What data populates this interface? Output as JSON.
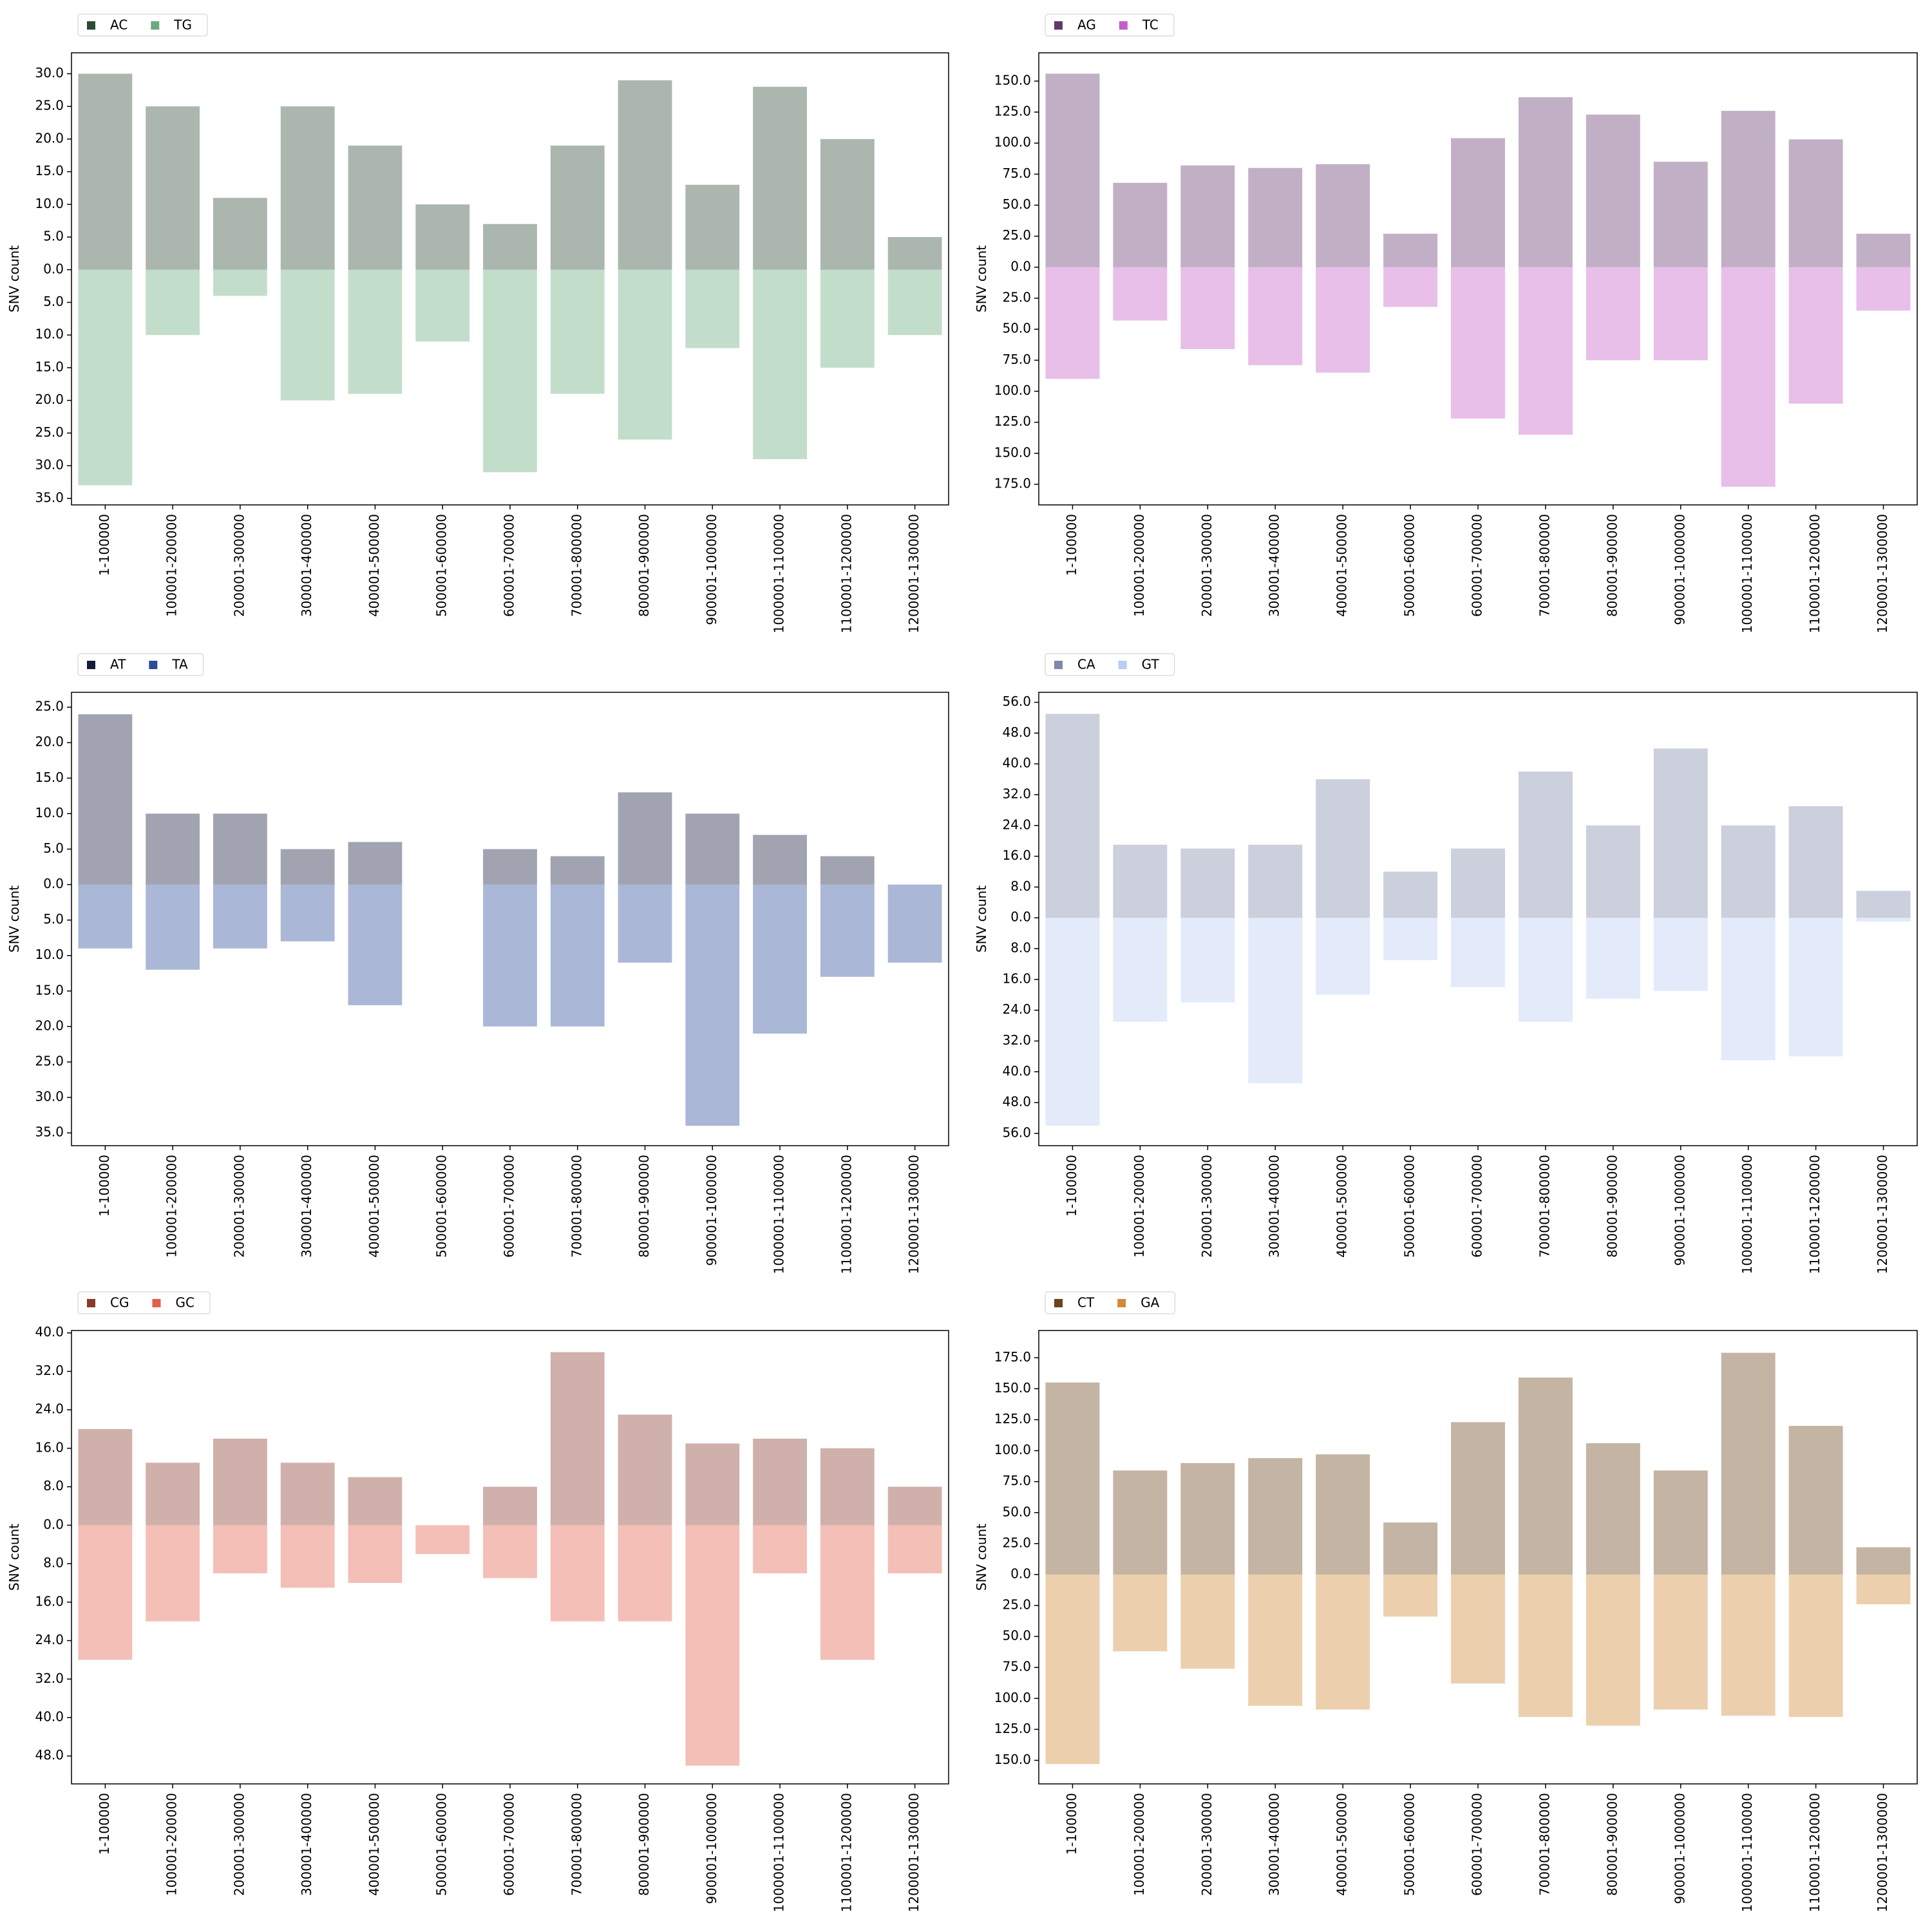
{
  "chart_data": [
    {
      "type": "bar",
      "ylabel": "SNV count",
      "bar_alpha": 0.4,
      "categories": [
        "1-100000",
        "100001-200000",
        "200001-300000",
        "300001-400000",
        "400001-500000",
        "500001-600000",
        "600001-700000",
        "700001-800000",
        "800001-900000",
        "900001-1000000",
        "1000001-1100000",
        "1100001-1200000",
        "1200001-1300000"
      ],
      "series": [
        {
          "name": "AC",
          "color": "#2c4a35",
          "values": [
            30,
            25,
            11,
            25,
            19,
            10,
            7,
            19,
            29,
            13,
            28,
            20,
            5
          ]
        },
        {
          "name": "TG",
          "color": "#6aaa7e",
          "values": [
            -33,
            -10,
            -4,
            -20,
            -19,
            -11,
            -31,
            -19,
            -26,
            -12,
            -29,
            -15,
            -10
          ]
        }
      ],
      "ylim": [
        -36,
        33.2
      ],
      "yticks": [
        {
          "value": 30,
          "label": "30.0"
        },
        {
          "value": 25,
          "label": "25.0"
        },
        {
          "value": 20,
          "label": "20.0"
        },
        {
          "value": 15,
          "label": "15.0"
        },
        {
          "value": 10,
          "label": "10.0"
        },
        {
          "value": 5,
          "label": "5.0"
        },
        {
          "value": 0,
          "label": "0.0"
        },
        {
          "value": -5,
          "label": "5.0"
        },
        {
          "value": -10,
          "label": "10.0"
        },
        {
          "value": -15,
          "label": "15.0"
        },
        {
          "value": -20,
          "label": "20.0"
        },
        {
          "value": -25,
          "label": "25.0"
        },
        {
          "value": -30,
          "label": "30.0"
        },
        {
          "value": -35,
          "label": "35.0"
        }
      ]
    },
    {
      "type": "bar",
      "ylabel": "SNV count",
      "bar_alpha": 0.4,
      "categories": [
        "1-100000",
        "100001-200000",
        "200001-300000",
        "300001-400000",
        "400001-500000",
        "500001-600000",
        "600001-700000",
        "700001-800000",
        "800001-900000",
        "900001-1000000",
        "1000001-1100000",
        "1100001-1200000",
        "1200001-1300000"
      ],
      "series": [
        {
          "name": "AG",
          "color": "#633a6d",
          "values": [
            156,
            68,
            82,
            80,
            83,
            27,
            104,
            137,
            123,
            85,
            126,
            103,
            27
          ]
        },
        {
          "name": "TC",
          "color": "#c45ec8",
          "values": [
            -90,
            -43,
            -66,
            -79,
            -85,
            -32,
            -122,
            -135,
            -75,
            -75,
            -177,
            -110,
            -35
          ]
        }
      ],
      "ylim": [
        -191.6,
        172.8
      ],
      "yticks": [
        {
          "value": 150,
          "label": "150.0"
        },
        {
          "value": 125,
          "label": "125.0"
        },
        {
          "value": 100,
          "label": "100.0"
        },
        {
          "value": 75,
          "label": "75.0"
        },
        {
          "value": 50,
          "label": "50.0"
        },
        {
          "value": 25,
          "label": "25.0"
        },
        {
          "value": 0,
          "label": "0.0"
        },
        {
          "value": -25,
          "label": "25.0"
        },
        {
          "value": -50,
          "label": "50.0"
        },
        {
          "value": -75,
          "label": "75.0"
        },
        {
          "value": -100,
          "label": "100.0"
        },
        {
          "value": -125,
          "label": "125.0"
        },
        {
          "value": -150,
          "label": "150.0"
        },
        {
          "value": -175,
          "label": "175.0"
        }
      ]
    },
    {
      "type": "bar",
      "ylabel": "SNV count",
      "bar_alpha": 0.4,
      "categories": [
        "1-100000",
        "100001-200000",
        "200001-300000",
        "300001-400000",
        "400001-500000",
        "500001-600000",
        "600001-700000",
        "700001-800000",
        "800001-900000",
        "900001-1000000",
        "1000001-1100000",
        "1100001-1200000",
        "1200001-1300000"
      ],
      "series": [
        {
          "name": "AT",
          "color": "#151c3a",
          "values": [
            24,
            10,
            10,
            5,
            6,
            0,
            5,
            4,
            13,
            10,
            7,
            4,
            0
          ]
        },
        {
          "name": "TA",
          "color": "#2e4a9a",
          "values": [
            -9,
            -12,
            -9,
            -8,
            -17,
            0,
            -20,
            -20,
            -11,
            -34,
            -21,
            -13,
            -11
          ]
        }
      ],
      "ylim": [
        -36.8,
        27.1
      ],
      "yticks": [
        {
          "value": 25,
          "label": "25.0"
        },
        {
          "value": 20,
          "label": "20.0"
        },
        {
          "value": 15,
          "label": "15.0"
        },
        {
          "value": 10,
          "label": "10.0"
        },
        {
          "value": 5,
          "label": "5.0"
        },
        {
          "value": 0,
          "label": "0.0"
        },
        {
          "value": -5,
          "label": "5.0"
        },
        {
          "value": -10,
          "label": "10.0"
        },
        {
          "value": -15,
          "label": "15.0"
        },
        {
          "value": -20,
          "label": "20.0"
        },
        {
          "value": -25,
          "label": "25.0"
        },
        {
          "value": -30,
          "label": "30.0"
        },
        {
          "value": -35,
          "label": "35.0"
        }
      ]
    },
    {
      "type": "bar",
      "ylabel": "SNV count",
      "bar_alpha": 0.4,
      "categories": [
        "1-100000",
        "100001-200000",
        "200001-300000",
        "300001-400000",
        "400001-500000",
        "500001-600000",
        "600001-700000",
        "700001-800000",
        "800001-900000",
        "900001-1000000",
        "1000001-1100000",
        "1100001-1200000",
        "1200001-1300000"
      ],
      "series": [
        {
          "name": "CA",
          "color": "#7f88a8",
          "values": [
            53,
            19,
            18,
            19,
            36,
            12,
            18,
            38,
            24,
            44,
            24,
            29,
            7
          ]
        },
        {
          "name": "GT",
          "color": "#b8cdf2",
          "values": [
            -54,
            -27,
            -22,
            -43,
            -20,
            -11,
            -18,
            -27,
            -21,
            -19,
            -37,
            -36,
            -1
          ]
        }
      ],
      "ylim": [
        -59.2,
        58.6
      ],
      "yticks": [
        {
          "value": 56,
          "label": "56.0"
        },
        {
          "value": 48,
          "label": "48.0"
        },
        {
          "value": 40,
          "label": "40.0"
        },
        {
          "value": 32,
          "label": "32.0"
        },
        {
          "value": 24,
          "label": "24.0"
        },
        {
          "value": 16,
          "label": "16.0"
        },
        {
          "value": 8,
          "label": "8.0"
        },
        {
          "value": 0,
          "label": "0.0"
        },
        {
          "value": -8,
          "label": "8.0"
        },
        {
          "value": -16,
          "label": "16.0"
        },
        {
          "value": -24,
          "label": "24.0"
        },
        {
          "value": -32,
          "label": "32.0"
        },
        {
          "value": -40,
          "label": "40.0"
        },
        {
          "value": -48,
          "label": "48.0"
        },
        {
          "value": -56,
          "label": "56.0"
        }
      ]
    },
    {
      "type": "bar",
      "ylabel": "SNV count",
      "bar_alpha": 0.4,
      "categories": [
        "1-100000",
        "100001-200000",
        "200001-300000",
        "300001-400000",
        "400001-500000",
        "500001-600000",
        "600001-700000",
        "700001-800000",
        "800001-900000",
        "900001-1000000",
        "1000001-1100000",
        "1100001-1200000",
        "1200001-1300000"
      ],
      "series": [
        {
          "name": "CG",
          "color": "#8a3a2a",
          "values": [
            20,
            13,
            18,
            13,
            10,
            0,
            8,
            36,
            23,
            17,
            18,
            16,
            8
          ]
        },
        {
          "name": "GC",
          "color": "#e0604c",
          "values": [
            -28,
            -20,
            -10,
            -13,
            -12,
            -6,
            -11,
            -20,
            -20,
            -50,
            -10,
            -28,
            -10
          ]
        }
      ],
      "ylim": [
        -53.8,
        40.5
      ],
      "yticks": [
        {
          "value": 40,
          "label": "40.0"
        },
        {
          "value": 32,
          "label": "32.0"
        },
        {
          "value": 24,
          "label": "24.0"
        },
        {
          "value": 16,
          "label": "16.0"
        },
        {
          "value": 8,
          "label": "8.0"
        },
        {
          "value": 0,
          "label": "0.0"
        },
        {
          "value": -8,
          "label": "8.0"
        },
        {
          "value": -16,
          "label": "16.0"
        },
        {
          "value": -24,
          "label": "24.0"
        },
        {
          "value": -32,
          "label": "32.0"
        },
        {
          "value": -40,
          "label": "40.0"
        },
        {
          "value": -48,
          "label": "48.0"
        }
      ]
    },
    {
      "type": "bar",
      "ylabel": "SNV count",
      "bar_alpha": 0.4,
      "categories": [
        "1-100000",
        "100001-200000",
        "200001-300000",
        "300001-400000",
        "400001-500000",
        "500001-600000",
        "600001-700000",
        "700001-800000",
        "800001-900000",
        "900001-1000000",
        "1000001-1100000",
        "1100001-1200000",
        "1200001-1300000"
      ],
      "series": [
        {
          "name": "CT",
          "color": "#6b4419",
          "values": [
            155,
            84,
            90,
            94,
            97,
            42,
            123,
            159,
            106,
            84,
            179,
            120,
            22
          ]
        },
        {
          "name": "GA",
          "color": "#d08a35",
          "values": [
            -153,
            -62,
            -76,
            -106,
            -109,
            -34,
            -88,
            -115,
            -122,
            -109,
            -114,
            -115,
            -24
          ]
        }
      ],
      "ylim": [
        -169,
        197
      ],
      "yticks": [
        {
          "value": 175,
          "label": "175.0"
        },
        {
          "value": 150,
          "label": "150.0"
        },
        {
          "value": 125,
          "label": "125.0"
        },
        {
          "value": 100,
          "label": "100.0"
        },
        {
          "value": 75,
          "label": "75.0"
        },
        {
          "value": 50,
          "label": "50.0"
        },
        {
          "value": 25,
          "label": "25.0"
        },
        {
          "value": 0,
          "label": "0.0"
        },
        {
          "value": -25,
          "label": "25.0"
        },
        {
          "value": -50,
          "label": "50.0"
        },
        {
          "value": -75,
          "label": "75.0"
        },
        {
          "value": -100,
          "label": "100.0"
        },
        {
          "value": -125,
          "label": "125.0"
        },
        {
          "value": -150,
          "label": "150.0"
        }
      ]
    }
  ]
}
